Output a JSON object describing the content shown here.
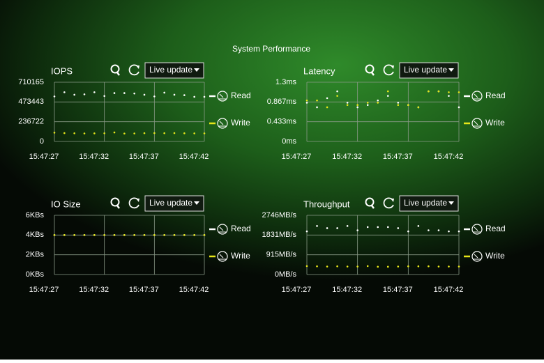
{
  "title": "System Performance",
  "chart_data": [
    {
      "type": "line",
      "title": "IOPS",
      "control": "Live update",
      "x": [
        "15:47:27",
        "15:47:28",
        "15:47:29",
        "15:47:30",
        "15:47:31",
        "15:47:32",
        "15:47:33",
        "15:47:34",
        "15:47:35",
        "15:47:36",
        "15:47:37",
        "15:47:38",
        "15:47:39",
        "15:47:40",
        "15:47:41",
        "15:47:42"
      ],
      "xlim": [
        "15:47:27",
        "15:47:42"
      ],
      "xticks": [
        "15:47:27",
        "15:47:32",
        "15:47:37",
        "15:47:42"
      ],
      "ylim": [
        0,
        710165
      ],
      "yticks": [
        0,
        236722,
        473443,
        710165
      ],
      "grid": true,
      "series": [
        {
          "name": "Read",
          "color": "#ffffff",
          "values": [
            540000,
            590000,
            560000,
            565000,
            590000,
            545000,
            580000,
            580000,
            575000,
            560000,
            540000,
            585000,
            560000,
            555000,
            535000,
            535000
          ]
        },
        {
          "name": "Write",
          "color": "#e6e619",
          "values": [
            105000,
            100000,
            98000,
            96000,
            97000,
            98000,
            108000,
            95000,
            96000,
            99000,
            100000,
            99000,
            100000,
            98000,
            97000,
            97000
          ]
        }
      ]
    },
    {
      "type": "line",
      "title": "Latency",
      "control": "Live update",
      "x": [
        "15:47:27",
        "15:47:28",
        "15:47:29",
        "15:47:30",
        "15:47:31",
        "15:47:32",
        "15:47:33",
        "15:47:34",
        "15:47:35",
        "15:47:36",
        "15:47:37",
        "15:47:38",
        "15:47:39",
        "15:47:40",
        "15:47:41",
        "15:47:42"
      ],
      "xlim": [
        "15:47:27",
        "15:47:42"
      ],
      "xticks": [
        "15:47:27",
        "15:47:32",
        "15:47:37",
        "15:47:42"
      ],
      "ylim": [
        0,
        1.3
      ],
      "yticks": [
        {
          "value": 0,
          "label": "0ms"
        },
        {
          "value": 0.433,
          "label": "0.433ms"
        },
        {
          "value": 0.867,
          "label": "0.867ms"
        },
        {
          "value": 1.3,
          "label": "1.3ms"
        }
      ],
      "grid": true,
      "series": [
        {
          "name": "Read",
          "color": "#ffffff",
          "values": [
            0.85,
            0.75,
            0.95,
            1.1,
            0.85,
            0.75,
            0.8,
            0.9,
            1.0,
            0.85,
            0.8,
            0.75,
            1.1,
            1.1,
            1.0,
            0.75
          ]
        },
        {
          "name": "Write",
          "color": "#e6e619",
          "values": [
            0.9,
            0.9,
            0.75,
            1.0,
            0.8,
            0.8,
            0.85,
            0.85,
            1.1,
            0.8,
            0.8,
            0.75,
            1.1,
            1.1,
            1.08,
            1.08
          ]
        }
      ]
    },
    {
      "type": "line",
      "title": "IO Size",
      "control": "Live update",
      "x": [
        "15:47:27",
        "15:47:28",
        "15:47:29",
        "15:47:30",
        "15:47:31",
        "15:47:32",
        "15:47:33",
        "15:47:34",
        "15:47:35",
        "15:47:36",
        "15:47:37",
        "15:47:38",
        "15:47:39",
        "15:47:40",
        "15:47:41",
        "15:47:42"
      ],
      "xlim": [
        "15:47:27",
        "15:47:42"
      ],
      "xticks": [
        "15:47:27",
        "15:47:32",
        "15:47:37",
        "15:47:42"
      ],
      "ylim": [
        0,
        6
      ],
      "yticks": [
        {
          "value": 0,
          "label": "0KBs"
        },
        {
          "value": 2,
          "label": "2KBs"
        },
        {
          "value": 4,
          "label": "4KBs"
        },
        {
          "value": 6,
          "label": "6KBs"
        }
      ],
      "grid": true,
      "series": [
        {
          "name": "Read",
          "color": "#ffffff",
          "values": [
            4,
            4,
            4,
            4,
            4,
            4,
            4,
            4,
            4,
            4,
            4,
            4,
            4,
            4,
            4,
            4
          ]
        },
        {
          "name": "Write",
          "color": "#e6e619",
          "values": [
            4,
            4,
            4,
            4,
            4,
            4,
            4,
            4,
            4,
            4,
            4,
            4,
            4,
            4,
            4,
            4
          ]
        }
      ]
    },
    {
      "type": "line",
      "title": "Throughput",
      "control": "Live update",
      "x": [
        "15:47:27",
        "15:47:28",
        "15:47:29",
        "15:47:30",
        "15:47:31",
        "15:47:32",
        "15:47:33",
        "15:47:34",
        "15:47:35",
        "15:47:36",
        "15:47:37",
        "15:47:38",
        "15:47:39",
        "15:47:40",
        "15:47:41",
        "15:47:42"
      ],
      "xlim": [
        "15:47:27",
        "15:47:42"
      ],
      "xticks": [
        "15:47:27",
        "15:47:32",
        "15:47:37",
        "15:47:42"
      ],
      "ylim": [
        0,
        2746
      ],
      "yticks": [
        {
          "value": 0,
          "label": "0MB/s"
        },
        {
          "value": 915,
          "label": "915MB/s"
        },
        {
          "value": 1831,
          "label": "1831MB/s"
        },
        {
          "value": 2746,
          "label": "2746MB/s"
        }
      ],
      "grid": true,
      "series": [
        {
          "name": "Read",
          "color": "#ffffff",
          "values": [
            2000,
            2250,
            2150,
            2150,
            2250,
            2050,
            2200,
            2200,
            2200,
            2150,
            2000,
            2250,
            2050,
            2050,
            2000,
            2000
          ]
        },
        {
          "name": "Write",
          "color": "#e6e619",
          "values": [
            390,
            380,
            370,
            380,
            370,
            370,
            390,
            360,
            360,
            370,
            380,
            380,
            380,
            370,
            370,
            370
          ]
        }
      ]
    }
  ]
}
